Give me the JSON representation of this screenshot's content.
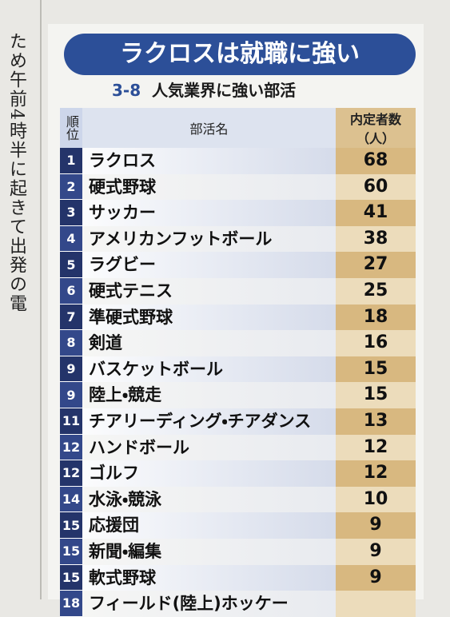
{
  "side_text": "ため午前4時半に起きて出発の電",
  "header": {
    "title": "ラクロスは就職に強い",
    "number": "3-8",
    "subtitle": "人気業界に強い部活"
  },
  "table": {
    "columns": [
      "順位",
      "部活名",
      "内定者数（人）"
    ],
    "rows": [
      {
        "rank": 1,
        "name": "ラクロス",
        "count": 68
      },
      {
        "rank": 2,
        "name": "硬式野球",
        "count": 60
      },
      {
        "rank": 3,
        "name": "サッカー",
        "count": 41
      },
      {
        "rank": 4,
        "name": "アメリカンフットボール",
        "count": 38
      },
      {
        "rank": 5,
        "name": "ラグビー",
        "count": 27
      },
      {
        "rank": 6,
        "name": "硬式テニス",
        "count": 25
      },
      {
        "rank": 7,
        "name": "準硬式野球",
        "count": 18
      },
      {
        "rank": 8,
        "name": "剣道",
        "count": 16
      },
      {
        "rank": 9,
        "name": "バスケットボール",
        "count": 15
      },
      {
        "rank": 9,
        "name": "陸上・競走",
        "count": 15
      },
      {
        "rank": 11,
        "name": "チアリーディング・チアダンス",
        "count": 13
      },
      {
        "rank": 12,
        "name": "ハンドボール",
        "count": 12
      },
      {
        "rank": 12,
        "name": "ゴルフ",
        "count": 12
      },
      {
        "rank": 14,
        "name": "水泳・競泳",
        "count": 10
      },
      {
        "rank": 15,
        "name": "応援団",
        "count": 9
      },
      {
        "rank": 15,
        "name": "新聞・編集",
        "count": 9
      },
      {
        "rank": 15,
        "name": "軟式野球",
        "count": 9
      },
      {
        "rank": 18,
        "name": "フィールド(陸上)ホッケー"
      }
    ]
  }
}
